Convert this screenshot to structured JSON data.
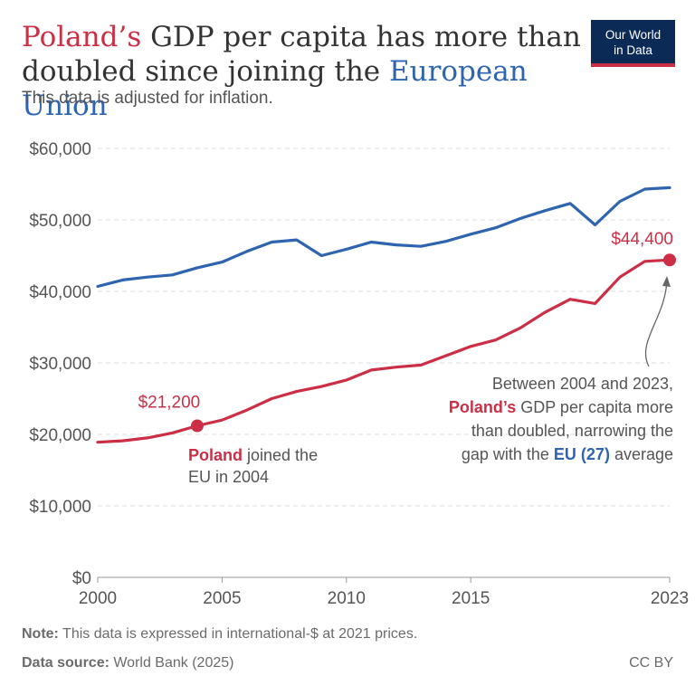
{
  "header": {
    "title_pl": "Poland’s",
    "title_mid": " GDP per capita has more than doubled since joining the ",
    "title_eu": "European Union",
    "subtitle": "This data is adjusted for inflation.",
    "logo_line1": "Our World",
    "logo_line2": "in Data"
  },
  "footer": {
    "note_label": "Note:",
    "note_text": " This data is expressed in international-$ at 2021 prices.",
    "source_label": "Data source:",
    "source_text": " World Bank (2025)",
    "license": "CC BY"
  },
  "colors": {
    "poland": "#cc2f45",
    "eu": "#2e64b0",
    "grid": "#dcdcdc",
    "text": "#555555"
  },
  "chart_data": {
    "type": "line",
    "title": "Poland’s GDP per capita has more than doubled since joining the European Union",
    "subtitle": "This data is adjusted for inflation.",
    "xlim": [
      2000,
      2023
    ],
    "ylim": [
      0,
      60000
    ],
    "x_ticks": [
      "2000",
      "2005",
      "2010",
      "2015",
      "2023"
    ],
    "y_ticks": [
      "$0",
      "$10,000",
      "$20,000",
      "$30,000",
      "$40,000",
      "$50,000",
      "$60,000"
    ],
    "grid": true,
    "x": [
      2000,
      2001,
      2002,
      2003,
      2004,
      2005,
      2006,
      2007,
      2008,
      2009,
      2010,
      2011,
      2012,
      2013,
      2014,
      2015,
      2016,
      2017,
      2018,
      2019,
      2020,
      2021,
      2022,
      2023
    ],
    "series": [
      {
        "name": "EU (27)",
        "values": [
          40700,
          41600,
          42000,
          42300,
          43300,
          44100,
          45600,
          46900,
          47200,
          45000,
          45900,
          46900,
          46500,
          46300,
          47000,
          48000,
          48900,
          50200,
          51300,
          52300,
          49300,
          52600,
          54300,
          54500
        ]
      },
      {
        "name": "Poland",
        "values": [
          18900,
          19100,
          19500,
          20200,
          21200,
          22000,
          23400,
          25000,
          26000,
          26700,
          27600,
          29000,
          29400,
          29700,
          31000,
          32300,
          33200,
          34900,
          37100,
          38900,
          38300,
          42000,
          44200,
          44400
        ]
      }
    ],
    "annotations": {
      "poland_2004_value": "$21,200",
      "poland_2023_value": "$44,400",
      "joined_pl": "Poland",
      "joined_rest1": " joined the",
      "joined_rest2": "EU in 2004",
      "narr_line1": "Between 2004 and 2023,",
      "narr_pl": "Poland’s",
      "narr_line2_rest": " GDP per capita more",
      "narr_line3": "than doubled, narrowing the",
      "narr_line4_pre": "gap with the ",
      "narr_eu": "EU (27)",
      "narr_line4_post": " average"
    }
  }
}
